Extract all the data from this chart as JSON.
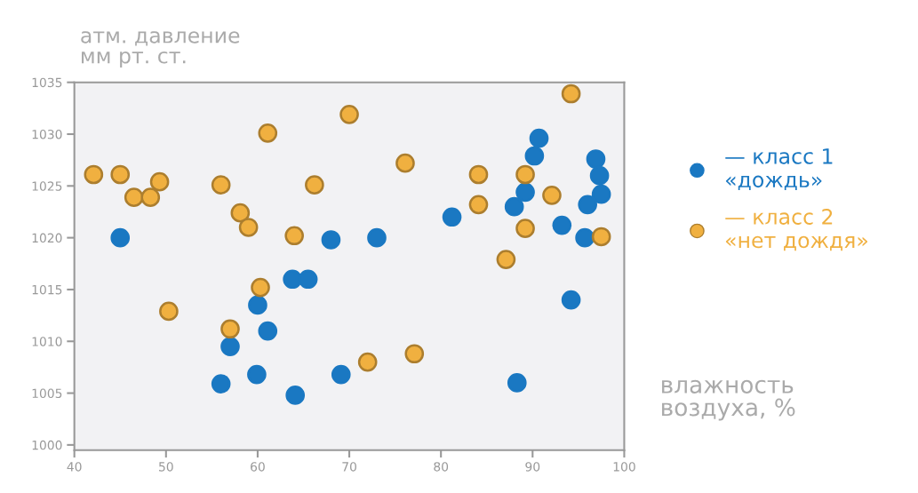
{
  "chart_data": {
    "type": "scatter",
    "ylabel": "атм. давление\nмм рт. ст.",
    "xlabel": "влажность\nвоздуха, %",
    "xlim": [
      40,
      100
    ],
    "xticks": [
      40,
      50,
      60,
      70,
      80,
      90,
      100
    ],
    "ylim": [
      999.5,
      1035
    ],
    "yticks": [
      1000,
      1005,
      1010,
      1015,
      1020,
      1025,
      1030,
      1035
    ],
    "grid": false,
    "legend": "right",
    "marker": "circle",
    "series": [
      {
        "name": "— класс 1\n«дождь»",
        "color": "#1a78c2",
        "x": [
          45.0,
          68.0,
          63.8,
          65.5,
          60.0,
          61.1,
          57.0,
          56.0,
          59.9,
          64.1,
          69.1,
          73.0,
          81.2,
          90.7,
          90.2,
          89.2,
          88.0,
          96.9,
          97.3,
          97.5,
          96.0,
          93.2,
          95.7,
          94.2,
          88.3
        ],
        "values": [
          1020.0,
          1019.8,
          1016.0,
          1016.0,
          1013.5,
          1011.0,
          1009.5,
          1005.9,
          1006.8,
          1004.8,
          1006.8,
          1020.0,
          1022.0,
          1029.6,
          1027.9,
          1024.4,
          1023.0,
          1027.6,
          1026.0,
          1024.2,
          1023.2,
          1021.2,
          1020.0,
          1014.0,
          1006.0
        ]
      },
      {
        "name": "— класс 2\n«нет дождя»",
        "color": "#f0b040",
        "x": [
          42.1,
          45.0,
          46.5,
          48.3,
          49.3,
          56.0,
          58.1,
          59.0,
          61.1,
          66.2,
          64.0,
          60.3,
          50.3,
          57.0,
          70.0,
          76.1,
          84.1,
          84.1,
          89.2,
          92.1,
          89.2,
          97.5,
          87.1,
          94.2,
          72.0,
          77.1
        ],
        "values": [
          1026.1,
          1026.1,
          1023.9,
          1023.9,
          1025.4,
          1025.1,
          1022.4,
          1021.0,
          1030.1,
          1025.1,
          1020.2,
          1015.2,
          1012.9,
          1011.2,
          1031.9,
          1027.2,
          1026.1,
          1023.2,
          1026.1,
          1024.1,
          1020.9,
          1020.1,
          1017.9,
          1033.9,
          1008.0,
          1008.8
        ]
      }
    ]
  }
}
